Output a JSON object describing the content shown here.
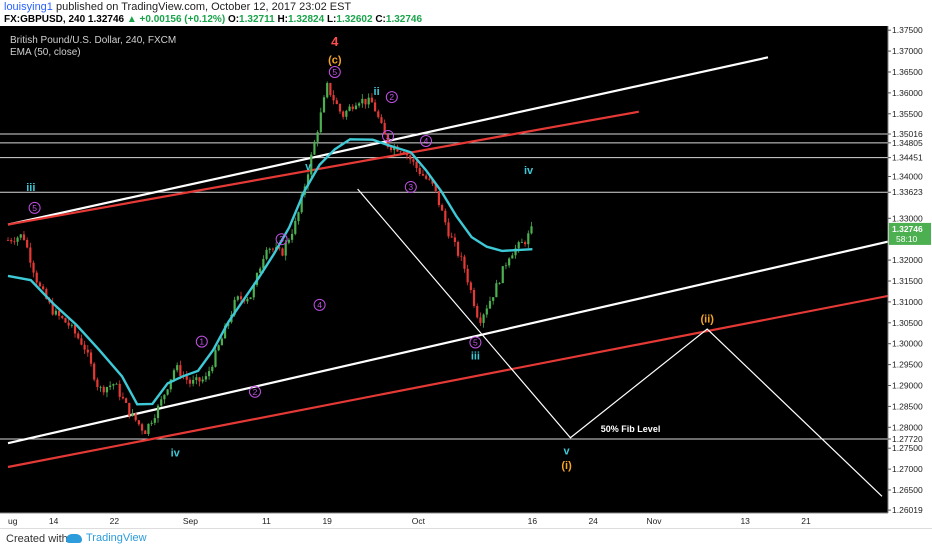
{
  "header": {
    "user": "louisying1",
    "published": "published on TradingView.com, October 12, 2017 23:02 EST",
    "symbol": "FX:GBPUSD, 240",
    "price": "1.32746",
    "change": "▲ +0.00156 (+0.12%)",
    "o_label": "O:",
    "o": "1.32711",
    "h_label": "H:",
    "h": "1.32824",
    "l_label": "L:",
    "l": "1.32602",
    "c_label": "C:",
    "c": "1.32746"
  },
  "legend": {
    "title": "British Pound/U.S. Dollar, 240, FXCM",
    "indicator": "EMA (50, close)"
  },
  "footer": {
    "created_with": "Created with",
    "brand": "TradingView"
  },
  "colors": {
    "background": "#000000",
    "ema": "#3ec9d6",
    "white_line": "#ffffff",
    "red_line": "#e53935",
    "up_candle": "#4caf50",
    "down_candle": "#e53935",
    "wave_purple": "#c152e6",
    "wave_cyan": "#3ec9d6",
    "wave_orange": "#f5a623",
    "label_red": "#ff4d4d"
  },
  "chart_data": {
    "type": "candlestick",
    "ylim": [
      1.2595,
      1.376
    ],
    "y_ticks": [
      "1.37500",
      "1.37000",
      "1.36500",
      "1.36000",
      "1.35500",
      "1.35016",
      "1.34805",
      "1.34451",
      "1.34000",
      "1.33623",
      "1.33000",
      "1.32746",
      "1.32000",
      "1.31500",
      "1.31000",
      "1.30500",
      "1.30000",
      "1.29500",
      "1.29000",
      "1.28500",
      "1.28000",
      "1.27720",
      "1.27500",
      "1.27000",
      "1.26500",
      "1.26019"
    ],
    "price_tag": {
      "value": "1.32746",
      "sub": "58:10"
    },
    "x_ticks": [
      {
        "label": "ug",
        "day": 0
      },
      {
        "label": "14",
        "day": 6
      },
      {
        "label": "22",
        "day": 14
      },
      {
        "label": "Sep",
        "day": 24
      },
      {
        "label": "11",
        "day": 34
      },
      {
        "label": "19",
        "day": 42
      },
      {
        "label": "Oct",
        "day": 54
      },
      {
        "label": "16",
        "day": 69
      },
      {
        "label": "24",
        "day": 77
      },
      {
        "label": "Nov",
        "day": 85
      },
      {
        "label": "13",
        "day": 97
      },
      {
        "label": "21",
        "day": 105
      }
    ],
    "price_path": [
      [
        0,
        1.3248
      ],
      [
        2,
        1.326
      ],
      [
        4,
        1.314
      ],
      [
        6,
        1.3075
      ],
      [
        8,
        1.3045
      ],
      [
        10,
        1.2995
      ],
      [
        12,
        1.289
      ],
      [
        14,
        1.2905
      ],
      [
        16,
        1.2835
      ],
      [
        18,
        1.279
      ],
      [
        20,
        1.2855
      ],
      [
        22,
        1.2945
      ],
      [
        24,
        1.2905
      ],
      [
        26,
        1.2915
      ],
      [
        28,
        1.3005
      ],
      [
        30,
        1.3105
      ],
      [
        32,
        1.3115
      ],
      [
        34,
        1.3235
      ],
      [
        36,
        1.3215
      ],
      [
        38,
        1.3295
      ],
      [
        40,
        1.3455
      ],
      [
        42,
        1.3615
      ],
      [
        44,
        1.3545
      ],
      [
        46,
        1.3585
      ],
      [
        48,
        1.3575
      ],
      [
        50,
        1.3475
      ],
      [
        52,
        1.3465
      ],
      [
        54,
        1.3415
      ],
      [
        56,
        1.3375
      ],
      [
        58,
        1.3265
      ],
      [
        60,
        1.3185
      ],
      [
        62,
        1.3055
      ],
      [
        64,
        1.3125
      ],
      [
        66,
        1.3215
      ],
      [
        68,
        1.3245
      ],
      [
        69,
        1.3274
      ]
    ],
    "ema_path": [
      [
        0,
        1.3162
      ],
      [
        3,
        1.3152
      ],
      [
        6,
        1.3095
      ],
      [
        9,
        1.3045
      ],
      [
        12,
        1.2985
      ],
      [
        15,
        1.2922
      ],
      [
        17,
        1.2855
      ],
      [
        19,
        1.2856
      ],
      [
        21,
        1.2905
      ],
      [
        23,
        1.2922
      ],
      [
        25,
        1.2935
      ],
      [
        27,
        1.2985
      ],
      [
        29,
        1.3052
      ],
      [
        31,
        1.3105
      ],
      [
        33,
        1.3158
      ],
      [
        35,
        1.3215
      ],
      [
        37,
        1.3278
      ],
      [
        39,
        1.3365
      ],
      [
        41,
        1.3428
      ],
      [
        43,
        1.3465
      ],
      [
        45,
        1.3489
      ],
      [
        48,
        1.3488
      ],
      [
        50,
        1.3475
      ],
      [
        53,
        1.3458
      ],
      [
        55,
        1.3415
      ],
      [
        57,
        1.3365
      ],
      [
        59,
        1.3305
      ],
      [
        61,
        1.3255
      ],
      [
        63,
        1.3232
      ],
      [
        65,
        1.3222
      ],
      [
        67,
        1.3224
      ],
      [
        69,
        1.3226
      ]
    ],
    "horizontal_levels": [
      1.35016,
      1.34805,
      1.34451,
      1.33623,
      1.2772
    ],
    "channel_lines": [
      {
        "color": "white",
        "from": [
          0,
          1.3285
        ],
        "to": [
          100,
          1.3685
        ]
      },
      {
        "color": "red",
        "from": [
          0,
          1.3285
        ],
        "to": [
          83,
          1.3555
        ]
      },
      {
        "color": "white",
        "from": [
          0,
          1.2762
        ],
        "to": [
          116,
          1.3245
        ]
      },
      {
        "color": "red",
        "from": [
          0,
          1.2705
        ],
        "to": [
          116,
          1.3115
        ]
      }
    ],
    "projection_path": [
      [
        46,
        1.337
      ],
      [
        74,
        1.2775
      ],
      [
        92,
        1.3035
      ],
      [
        115,
        1.2635
      ]
    ],
    "fib_label": "50% Fib Level",
    "wave_labels": [
      {
        "text": "4",
        "day": 43,
        "price": 1.3722,
        "color": "red",
        "style": "bold"
      },
      {
        "text": "(c)",
        "day": 43,
        "price": 1.368,
        "color": "orange",
        "style": "bold"
      },
      {
        "text": "5",
        "day": 43,
        "price": 1.365,
        "color": "purple",
        "style": "circle"
      },
      {
        "text": "ii",
        "day": 48.5,
        "price": 1.3605,
        "color": "cyan",
        "style": "bold"
      },
      {
        "text": "2",
        "day": 50.5,
        "price": 1.359,
        "color": "purple",
        "style": "circle"
      },
      {
        "text": "1",
        "day": 50,
        "price": 1.3497,
        "color": "purple",
        "style": "circle"
      },
      {
        "text": "4",
        "day": 55,
        "price": 1.3485,
        "color": "purple",
        "style": "circle"
      },
      {
        "text": "3",
        "day": 53,
        "price": 1.3375,
        "color": "purple",
        "style": "circle"
      },
      {
        "text": "iv",
        "day": 68.5,
        "price": 1.3415,
        "color": "cyan",
        "style": "bold"
      },
      {
        "text": "v",
        "day": 39.5,
        "price": 1.3425,
        "color": "cyan",
        "style": "bold"
      },
      {
        "text": "iii",
        "day": 3,
        "price": 1.3375,
        "color": "cyan",
        "style": "bold"
      },
      {
        "text": "5",
        "day": 3.5,
        "price": 1.3325,
        "color": "purple",
        "style": "circle"
      },
      {
        "text": "3",
        "day": 36,
        "price": 1.325,
        "color": "purple",
        "style": "circle"
      },
      {
        "text": "4",
        "day": 41,
        "price": 1.3093,
        "color": "purple",
        "style": "circle"
      },
      {
        "text": "1",
        "day": 25.5,
        "price": 1.3005,
        "color": "purple",
        "style": "circle"
      },
      {
        "text": "2",
        "day": 32.5,
        "price": 1.2885,
        "color": "purple",
        "style": "circle"
      },
      {
        "text": "5",
        "day": 61.5,
        "price": 1.3003,
        "color": "purple",
        "style": "circle"
      },
      {
        "text": "iii",
        "day": 61.5,
        "price": 1.2972,
        "color": "cyan",
        "style": "bold"
      },
      {
        "text": "(ii)",
        "day": 92,
        "price": 1.306,
        "color": "orange",
        "style": "bold"
      },
      {
        "text": "iv",
        "day": 22,
        "price": 1.274,
        "color": "cyan",
        "style": "bold"
      },
      {
        "text": "v",
        "day": 73.5,
        "price": 1.2745,
        "color": "cyan",
        "style": "bold"
      },
      {
        "text": "(i)",
        "day": 73.5,
        "price": 1.271,
        "color": "orange",
        "style": "bold"
      }
    ]
  }
}
